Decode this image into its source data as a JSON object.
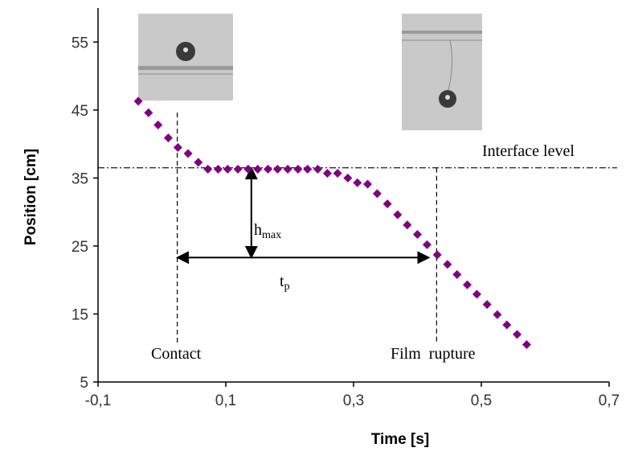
{
  "chart_data": {
    "type": "scatter",
    "x_label": "Time [s]",
    "y_label": "Position [cm]",
    "xlim": [
      -0.1,
      0.7
    ],
    "ylim": [
      5,
      60
    ],
    "xticks": [
      {
        "value": -0.1,
        "label": "-0,1"
      },
      {
        "value": 0.1,
        "label": "0,1"
      },
      {
        "value": 0.3,
        "label": "0,3"
      },
      {
        "value": 0.5,
        "label": "0,5"
      },
      {
        "value": 0.7,
        "label": "0,7"
      }
    ],
    "yticks": [
      5,
      15,
      25,
      35,
      45,
      55
    ],
    "color": "#800080",
    "x": [
      -0.037,
      -0.021,
      -0.006,
      0.01,
      0.025,
      0.041,
      0.057,
      0.072,
      0.088,
      0.103,
      0.119,
      0.135,
      0.15,
      0.166,
      0.181,
      0.197,
      0.213,
      0.228,
      0.244,
      0.259,
      0.275,
      0.291,
      0.306,
      0.322,
      0.337,
      0.353,
      0.369,
      0.384,
      0.4,
      0.415,
      0.431,
      0.447,
      0.462,
      0.478,
      0.493,
      0.509,
      0.525,
      0.54,
      0.556,
      0.571
    ],
    "values": [
      46.3,
      44.6,
      42.8,
      40.9,
      39.5,
      38.6,
      37.3,
      36.3,
      36.3,
      36.3,
      36.3,
      36.3,
      36.3,
      36.3,
      36.3,
      36.3,
      36.3,
      36.3,
      36.3,
      35.7,
      35.7,
      35,
      34.3,
      34.1,
      32.7,
      31.2,
      29.6,
      28.1,
      26.7,
      25.2,
      23.7,
      22.3,
      20.8,
      19.3,
      17.9,
      16.4,
      14.9,
      13.4,
      12,
      10.5
    ],
    "interface_level": {
      "label": "Interface level",
      "y": 36.5
    },
    "contact": {
      "label": "Contact",
      "x": 0.024
    },
    "rupture": {
      "label": "Film  rupture",
      "x": 0.43
    },
    "h_arrow": {
      "text": "h",
      "subscript": "max",
      "x": 0.14,
      "y": [
        36.5,
        23.3
      ]
    },
    "t_arrow": {
      "text": "t",
      "subscript": "p",
      "y": 23.3,
      "x": [
        0.024,
        0.418
      ]
    }
  }
}
